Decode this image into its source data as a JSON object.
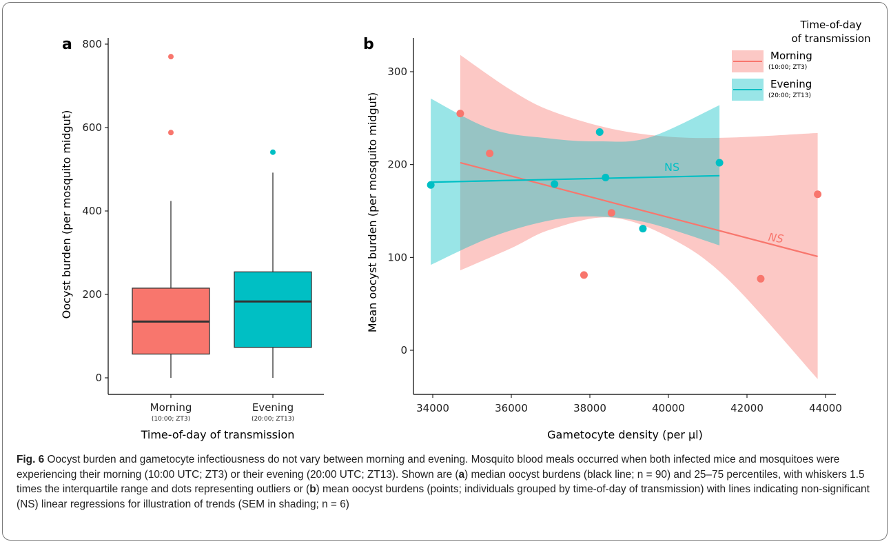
{
  "charts": {
    "a": {
      "panel_label": "a",
      "ylabel": "Oocyst burden (per mosquito midgut)",
      "xlabel": "Time-of-day of transmission",
      "yticks": [
        "0",
        "200",
        "400",
        "600",
        "800"
      ]
    },
    "b": {
      "panel_label": "b",
      "ylabel": "Mean oocyst burden (per mosquito midgut)",
      "xlabel": "Gametocyte density (per µl)",
      "xticks": [
        "34000",
        "36000",
        "38000",
        "40000",
        "42000",
        "44000"
      ],
      "yticks": [
        "0",
        "100",
        "200",
        "300"
      ],
      "legend": {
        "title_line1": "Time-of-day",
        "title_line2": "of transmission",
        "morning_label": "Morning",
        "morning_sub": "(10:00; ZT3)",
        "evening_label": "Evening",
        "evening_sub": "(20:00; ZT13)"
      },
      "ns_morning": "NS",
      "ns_evening": "NS"
    }
  },
  "chart_data": [
    {
      "type": "box",
      "panel": "a",
      "ylabel": "Oocyst burden (per mosquito midgut)",
      "xlabel": "Time-of-day of transmission",
      "ylim": [
        -25,
        810
      ],
      "categories": [
        {
          "label": "Morning",
          "sublabel": "(10:00; ZT3)",
          "color": "#F8766D",
          "whisker_low": 0,
          "q1": 57,
          "median": 135,
          "q3": 215,
          "whisker_high": 424,
          "outliers": [
            588,
            770
          ]
        },
        {
          "label": "Evening",
          "sublabel": "(20:00; ZT13)",
          "color": "#00BFC4",
          "whisker_low": 0,
          "q1": 73,
          "median": 183,
          "q3": 254,
          "whisker_high": 492,
          "outliers": [
            541
          ]
        }
      ]
    },
    {
      "type": "scatter",
      "panel": "b",
      "xlabel": "Gametocyte density (per µl)",
      "ylabel": "Mean oocyst burden (per mosquito midgut)",
      "xlim": [
        33800,
        44200
      ],
      "ylim": [
        -50,
        335
      ],
      "series": [
        {
          "name": "Morning",
          "color": "#F8766D",
          "points": [
            [
              34700,
              255
            ],
            [
              35450,
              212
            ],
            [
              37850,
              81
            ],
            [
              38550,
              148
            ],
            [
              42350,
              77
            ],
            [
              43800,
              168
            ]
          ],
          "fit": [
            [
              34700,
              202
            ],
            [
              43800,
              101
            ]
          ],
          "band_upper": [
            [
              34700,
              318
            ],
            [
              36000,
              280
            ],
            [
              37000,
              258
            ],
            [
              38500,
              239
            ],
            [
              40000,
              230
            ],
            [
              41500,
              229
            ],
            [
              43800,
              234
            ]
          ],
          "band_lower": [
            [
              34700,
              86
            ],
            [
              36000,
              110
            ],
            [
              37000,
              130
            ],
            [
              38500,
              143
            ],
            [
              40000,
              122
            ],
            [
              41500,
              77
            ],
            [
              43800,
              -31
            ]
          ]
        },
        {
          "name": "Evening",
          "color": "#00BFC4",
          "points": [
            [
              33950,
              178
            ],
            [
              37100,
              179
            ],
            [
              38250,
              235
            ],
            [
              38400,
              186
            ],
            [
              39350,
              131
            ],
            [
              41300,
              202
            ]
          ],
          "fit": [
            [
              33950,
              181
            ],
            [
              41300,
              188
            ]
          ],
          "band_upper": [
            [
              33950,
              271
            ],
            [
              35500,
              238
            ],
            [
              37000,
              228
            ],
            [
              38200,
              225
            ],
            [
              39500,
              229
            ],
            [
              41300,
              264
            ]
          ],
          "band_lower": [
            [
              33950,
              92
            ],
            [
              35500,
              122
            ],
            [
              37000,
              140
            ],
            [
              38200,
              144
            ],
            [
              39500,
              137
            ],
            [
              41300,
              113
            ]
          ]
        }
      ]
    }
  ],
  "caption": {
    "fig_label": "Fig. 6",
    "text1": "  Oocyst burden and gametocyte infectiousness do not vary between morning and evening. Mosquito blood meals occurred when both infected mice and mosquitoes were experiencing their morning (10:00 UTC; ZT3) or their evening (20:00 UTC; ZT13). Shown are (",
    "a": "a",
    "text2": ") median oocyst burdens (black line; n = 90) and 25–75 percentiles, with whiskers 1.5 times the interquartile range and dots representing outliers or (",
    "b": "b",
    "text3": ") mean oocyst burdens (points; individuals grouped by time-of-day of transmission) with lines indicating non-significant (NS) linear regressions for illustration of trends (SEM in shading; n = 6)"
  }
}
